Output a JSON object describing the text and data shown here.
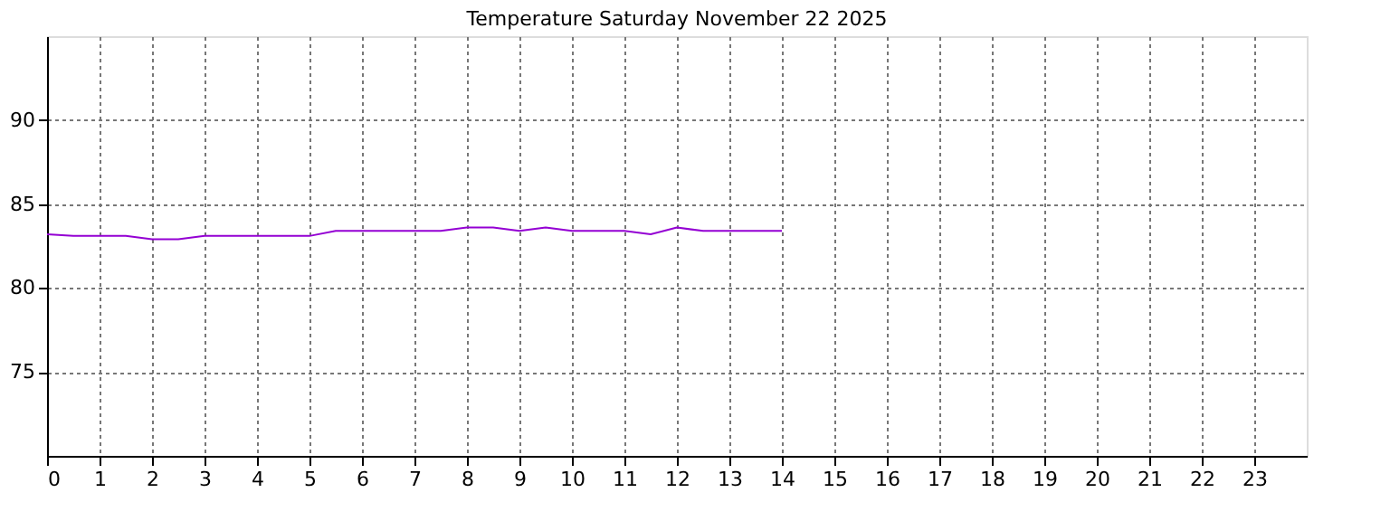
{
  "chart_data": {
    "type": "line",
    "title": "Temperature Saturday November 22 2025",
    "x": [
      0,
      0.5,
      1,
      1.5,
      2,
      2.5,
      3,
      3.5,
      4,
      4.5,
      5,
      5.5,
      6,
      6.5,
      7,
      7.5,
      8,
      8.5,
      9,
      9.5,
      10,
      10.5,
      11,
      11.5,
      12,
      12.5,
      13,
      13.5,
      14
    ],
    "series": [
      {
        "color": "#9400d3",
        "values": [
          83.2,
          83.1,
          83.1,
          83.1,
          82.9,
          82.9,
          83.1,
          83.1,
          83.1,
          83.1,
          83.1,
          83.4,
          83.4,
          83.4,
          83.4,
          83.4,
          83.6,
          83.6,
          83.4,
          83.6,
          83.4,
          83.4,
          83.4,
          83.2,
          83.6,
          83.4,
          83.4,
          83.4,
          83.4
        ]
      }
    ],
    "xlim": [
      0,
      24
    ],
    "xticks": [
      0,
      1,
      2,
      3,
      4,
      5,
      6,
      7,
      8,
      9,
      10,
      11,
      12,
      13,
      14,
      15,
      16,
      17,
      18,
      19,
      20,
      21,
      22,
      23
    ],
    "ylim": [
      70,
      95
    ],
    "yticks": [
      75,
      80,
      85,
      90
    ],
    "grid": true,
    "line_style": "solid",
    "marker": "none"
  }
}
